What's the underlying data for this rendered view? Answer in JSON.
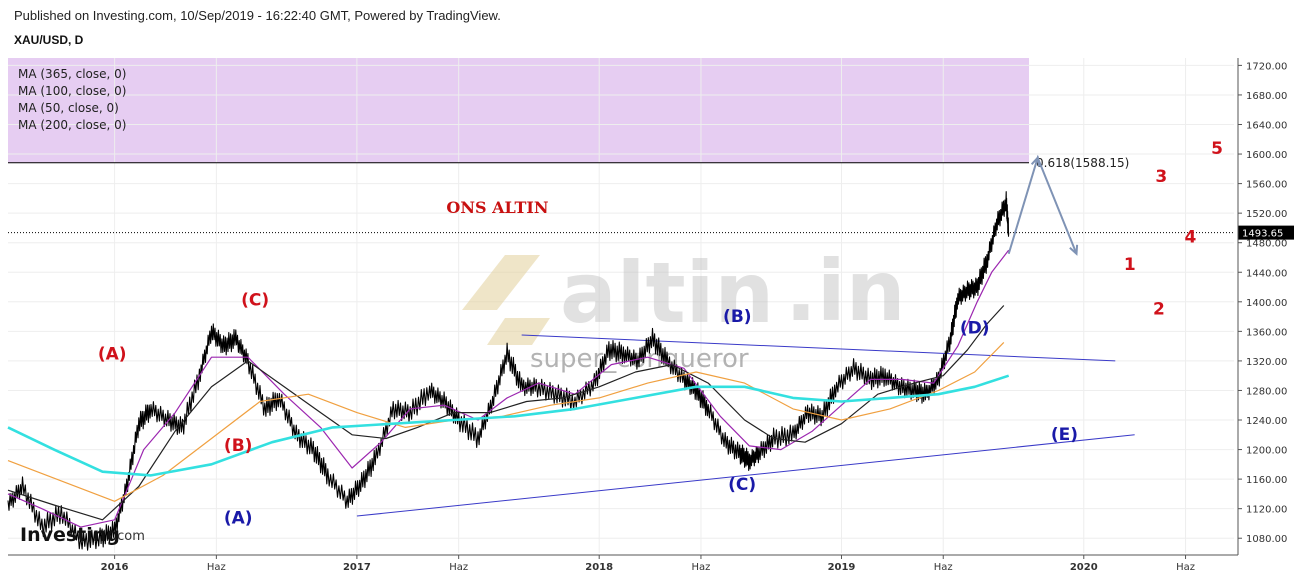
{
  "header": {
    "published": "Published on Investing.com, 10/Sep/2019 - 16:22:40 GMT, Powered by TradingView.",
    "symbol": "XAU/USD, D"
  },
  "legend": {
    "ma_items": [
      "MA (365, close, 0)",
      "MA (100, close, 0)",
      "MA (50, close, 0)",
      "MA (200, close, 0)"
    ]
  },
  "watermark": {
    "brand": "altin",
    "brand_suffix": ".in",
    "user": "super_conqueror",
    "logo": "Investing",
    "logo_suffix": ".com"
  },
  "chart_data": {
    "type": "line",
    "title": "XAU/USD, D",
    "ylim": [
      1060,
      1730
    ],
    "y_ticks": [
      1080,
      1120,
      1160,
      1200,
      1240,
      1280,
      1320,
      1360,
      1400,
      1440,
      1480,
      1520,
      1560,
      1600,
      1640,
      1680,
      1720
    ],
    "y_tick_labels": [
      "1080.00",
      "1120.00",
      "1160.00",
      "1200.00",
      "1240.00",
      "1280.00",
      "1320.00",
      "1360.00",
      "1400.00",
      "1440.00",
      "1480.00",
      "1520.00",
      "1560.00",
      "1600.00",
      "1640.00",
      "1680.00",
      "1720.00"
    ],
    "xlim": [
      2015.56,
      2020.62
    ],
    "x_ticks": [
      {
        "x": 2016.0,
        "label": "2016",
        "major": true
      },
      {
        "x": 2016.42,
        "label": "Haz",
        "major": false
      },
      {
        "x": 2017.0,
        "label": "2017",
        "major": true
      },
      {
        "x": 2017.42,
        "label": "Haz",
        "major": false
      },
      {
        "x": 2018.0,
        "label": "2018",
        "major": true
      },
      {
        "x": 2018.42,
        "label": "Haz",
        "major": false
      },
      {
        "x": 2019.0,
        "label": "2019",
        "major": true
      },
      {
        "x": 2019.42,
        "label": "Haz",
        "major": false
      },
      {
        "x": 2020.0,
        "label": "2020",
        "major": true
      },
      {
        "x": 2020.42,
        "label": "Haz",
        "major": false
      }
    ],
    "current_price": {
      "value": 1493.65,
      "label": "1493.65"
    },
    "fib_level": {
      "value": 1588.15,
      "label": "0.618(1588.15)"
    },
    "highlight_zone": {
      "from": 1588.15,
      "to": 1730,
      "color": "#e6cdf2"
    },
    "annotation": {
      "text": "ONS ALTIN",
      "x": 2017.58,
      "y": 1520
    },
    "series": [
      {
        "name": "XAU/USD",
        "color": "#000000",
        "x": [
          2015.56,
          2015.62,
          2015.7,
          2015.78,
          2015.86,
          2015.94,
          2016.0,
          2016.05,
          2016.1,
          2016.15,
          2016.22,
          2016.28,
          2016.35,
          2016.4,
          2016.45,
          2016.5,
          2016.55,
          2016.62,
          2016.68,
          2016.75,
          2016.82,
          2016.88,
          2016.96,
          2017.02,
          2017.08,
          2017.15,
          2017.22,
          2017.3,
          2017.36,
          2017.42,
          2017.5,
          2017.56,
          2017.62,
          2017.68,
          2017.74,
          2017.82,
          2017.9,
          2017.98,
          2018.04,
          2018.1,
          2018.16,
          2018.22,
          2018.28,
          2018.35,
          2018.4,
          2018.45,
          2018.52,
          2018.58,
          2018.62,
          2018.66,
          2018.72,
          2018.8,
          2018.86,
          2018.92,
          2018.98,
          2019.05,
          2019.12,
          2019.18,
          2019.24,
          2019.3,
          2019.35,
          2019.4,
          2019.45,
          2019.48,
          2019.52,
          2019.56,
          2019.6,
          2019.64,
          2019.68,
          2019.69
        ],
        "y": [
          1125,
          1150,
          1095,
          1115,
          1075,
          1080,
          1090,
          1150,
          1235,
          1255,
          1240,
          1230,
          1300,
          1360,
          1340,
          1350,
          1320,
          1255,
          1270,
          1220,
          1200,
          1165,
          1130,
          1155,
          1190,
          1255,
          1250,
          1280,
          1265,
          1240,
          1215,
          1265,
          1330,
          1285,
          1285,
          1275,
          1265,
          1290,
          1335,
          1330,
          1320,
          1350,
          1320,
          1295,
          1280,
          1255,
          1210,
          1195,
          1185,
          1195,
          1215,
          1220,
          1250,
          1245,
          1285,
          1310,
          1295,
          1300,
          1285,
          1280,
          1275,
          1295,
          1350,
          1405,
          1415,
          1420,
          1455,
          1505,
          1535,
          1493.65
        ]
      },
      {
        "name": "MA (50, close, 0)",
        "color": "#9c27b0",
        "x": [
          2015.56,
          2015.7,
          2015.86,
          2016.0,
          2016.12,
          2016.25,
          2016.4,
          2016.55,
          2016.7,
          2016.85,
          2016.98,
          2017.1,
          2017.22,
          2017.36,
          2017.5,
          2017.62,
          2017.75,
          2017.9,
          2018.05,
          2018.2,
          2018.35,
          2018.5,
          2018.62,
          2018.75,
          2018.88,
          2019.0,
          2019.12,
          2019.25,
          2019.38,
          2019.48,
          2019.56,
          2019.62,
          2019.69
        ],
        "y": [
          1140,
          1120,
          1095,
          1105,
          1200,
          1250,
          1325,
          1325,
          1275,
          1230,
          1175,
          1210,
          1255,
          1260,
          1240,
          1270,
          1290,
          1275,
          1315,
          1325,
          1310,
          1245,
          1205,
          1200,
          1225,
          1260,
          1295,
          1295,
          1290,
          1340,
          1400,
          1440,
          1470
        ]
      },
      {
        "name": "MA (100, close, 0)",
        "color": "#222222",
        "x": [
          2015.56,
          2015.75,
          2015.95,
          2016.1,
          2016.25,
          2016.4,
          2016.55,
          2016.7,
          2016.85,
          2016.98,
          2017.12,
          2017.25,
          2017.4,
          2017.55,
          2017.7,
          2017.85,
          2018.0,
          2018.15,
          2018.3,
          2018.45,
          2018.6,
          2018.72,
          2018.85,
          2019.0,
          2019.15,
          2019.3,
          2019.42,
          2019.52,
          2019.6,
          2019.67
        ],
        "y": [
          1145,
          1125,
          1105,
          1150,
          1225,
          1285,
          1320,
          1285,
          1250,
          1220,
          1215,
          1230,
          1250,
          1250,
          1265,
          1270,
          1285,
          1305,
          1315,
          1290,
          1240,
          1215,
          1210,
          1235,
          1275,
          1290,
          1300,
          1335,
          1370,
          1395
        ]
      },
      {
        "name": "MA (200, close, 0)",
        "color": "#f0a040",
        "x": [
          2015.56,
          2015.8,
          2016.0,
          2016.2,
          2016.4,
          2016.6,
          2016.8,
          2017.0,
          2017.2,
          2017.4,
          2017.6,
          2017.8,
          2018.0,
          2018.2,
          2018.4,
          2018.6,
          2018.8,
          2019.0,
          2019.2,
          2019.4,
          2019.55,
          2019.67
        ],
        "y": [
          1185,
          1155,
          1130,
          1165,
          1215,
          1265,
          1275,
          1250,
          1230,
          1240,
          1245,
          1260,
          1270,
          1290,
          1305,
          1290,
          1255,
          1240,
          1255,
          1280,
          1305,
          1345
        ]
      },
      {
        "name": "MA (365, close, 0)",
        "color": "#33e0e0",
        "x": [
          2015.56,
          2015.75,
          2015.95,
          2016.15,
          2016.4,
          2016.65,
          2016.9,
          2017.15,
          2017.4,
          2017.65,
          2017.9,
          2018.15,
          2018.4,
          2018.6,
          2018.8,
          2019.0,
          2019.2,
          2019.4,
          2019.55,
          2019.69
        ],
        "y": [
          1230,
          1200,
          1170,
          1165,
          1180,
          1210,
          1230,
          1235,
          1240,
          1245,
          1255,
          1270,
          1285,
          1285,
          1270,
          1265,
          1270,
          1275,
          1285,
          1300
        ]
      }
    ],
    "trendlines": [
      {
        "x1": 2017.0,
        "y1": 1110,
        "x2": 2020.21,
        "y2": 1220,
        "color": "#3a3ac8"
      },
      {
        "x1": 2017.68,
        "y1": 1355,
        "x2": 2020.13,
        "y2": 1320,
        "color": "#3a3ac8"
      }
    ],
    "projection": [
      {
        "x": 2019.69,
        "y": 1465
      },
      {
        "x": 2019.81,
        "y": 1595
      },
      {
        "x": 2019.97,
        "y": 1465
      }
    ],
    "wave_labels": [
      {
        "text": "(A)",
        "x": 2015.99,
        "y": 1322,
        "color": "red"
      },
      {
        "text": "(C)",
        "x": 2016.58,
        "y": 1395,
        "color": "red"
      },
      {
        "text": "(B)",
        "x": 2016.51,
        "y": 1198,
        "color": "red"
      },
      {
        "text": "(A)",
        "x": 2016.51,
        "y": 1100,
        "color": "blue"
      },
      {
        "text": "(B)",
        "x": 2018.57,
        "y": 1373,
        "color": "blue"
      },
      {
        "text": "(C)",
        "x": 2018.59,
        "y": 1145,
        "color": "blue"
      },
      {
        "text": "(D)",
        "x": 2019.55,
        "y": 1357,
        "color": "blue"
      },
      {
        "text": "(E)",
        "x": 2019.92,
        "y": 1213,
        "color": "blue"
      },
      {
        "text": "1",
        "x": 2020.19,
        "y": 1443,
        "color": "red"
      },
      {
        "text": "2",
        "x": 2020.31,
        "y": 1383,
        "color": "red"
      },
      {
        "text": "3",
        "x": 2020.32,
        "y": 1562,
        "color": "red"
      },
      {
        "text": "4",
        "x": 2020.44,
        "y": 1480,
        "color": "red"
      },
      {
        "text": "5",
        "x": 2020.55,
        "y": 1600,
        "color": "red"
      }
    ]
  }
}
